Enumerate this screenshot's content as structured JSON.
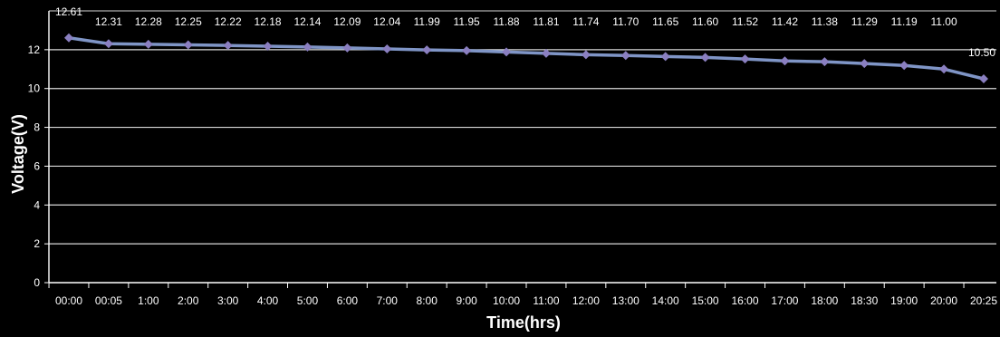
{
  "chart_data": {
    "type": "line",
    "title": "",
    "xlabel": "Time(hrs)",
    "ylabel": "Voltage(V)",
    "ylim": [
      0,
      14
    ],
    "yticks": [
      0,
      2,
      4,
      6,
      8,
      10,
      12
    ],
    "grid": true,
    "categories": [
      "00:00",
      "00:05",
      "1:00",
      "2:00",
      "3:00",
      "4:00",
      "5:00",
      "6:00",
      "7:00",
      "8:00",
      "9:00",
      "10:00",
      "11:00",
      "12:00",
      "13:00",
      "14:00",
      "15:00",
      "16:00",
      "17:00",
      "18:00",
      "18:30",
      "19:00",
      "20:00",
      "20:25"
    ],
    "series": [
      {
        "name": "",
        "values": [
          12.61,
          12.31,
          12.28,
          12.25,
          12.22,
          12.18,
          12.14,
          12.09,
          12.04,
          11.99,
          11.95,
          11.88,
          11.81,
          11.74,
          11.7,
          11.65,
          11.6,
          11.52,
          11.42,
          11.38,
          11.29,
          11.19,
          11.0,
          10.5
        ],
        "labels": [
          "12.61",
          "12.31",
          "12.28",
          "12.25",
          "12.22",
          "12.18",
          "12.14",
          "12.09",
          "12.04",
          "11.99",
          "11.95",
          "11.88",
          "11.81",
          "11.74",
          "11.70",
          "11.65",
          "11.60",
          "11.52",
          "11.42",
          "11.38",
          "11.29",
          "11.19",
          "11.00",
          "10.50"
        ]
      }
    ],
    "colors": {
      "background": "#000000",
      "grid": "#d9d9d9",
      "axis": "#ffffff",
      "line": "#7f95c6",
      "marker": "#8a7fc0",
      "text": "#ffffff"
    }
  }
}
